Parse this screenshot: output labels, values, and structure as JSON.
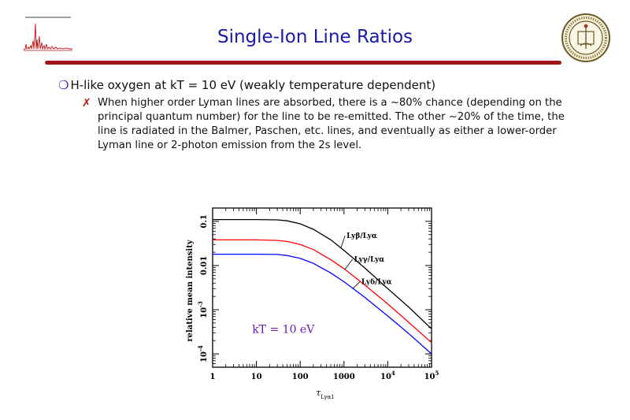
{
  "slide": {
    "title": "Single-Ion Line Ratios",
    "bullet1": {
      "marker": "❍",
      "text": "H-like oxygen at kT = 10 eV (weakly temperature dependent)"
    },
    "bullet2": {
      "marker": "✗",
      "text": "When higher order Lyman lines are absorbed, there is a ~80% chance (depending on the principal quantum number) for the line to be re-emitted.  The other ~20% of the time, the line is radiated in the Balmer, Paschen, etc. lines, and eventually as either a lower-order Lyman line or 2-photon emission from the 2s level."
    }
  },
  "colors": {
    "title": "#1a1aa8",
    "rule": "#a01717",
    "annotation": "#6a1bb5",
    "series": [
      "#000000",
      "#ff0000",
      "#0000ff"
    ]
  },
  "chart_data": {
    "type": "line",
    "xlabel": "τLyα1",
    "ylabel": "relative mean intensity",
    "x_scale": "log",
    "y_scale": "log",
    "xlim": [
      1,
      100000
    ],
    "ylim": [
      5e-05,
      0.2
    ],
    "x_ticks": [
      {
        "v": 1,
        "base": "1",
        "sup": ""
      },
      {
        "v": 10,
        "base": "10",
        "sup": ""
      },
      {
        "v": 100,
        "base": "100",
        "sup": ""
      },
      {
        "v": 1000,
        "base": "1000",
        "sup": ""
      },
      {
        "v": 10000,
        "base": "10",
        "sup": "4"
      },
      {
        "v": 100000,
        "base": "10",
        "sup": "5"
      }
    ],
    "y_ticks": [
      {
        "v": 0.1,
        "base": "0.1",
        "sup": ""
      },
      {
        "v": 0.01,
        "base": "0.01",
        "sup": ""
      },
      {
        "v": 0.001,
        "base": "10",
        "sup": "-3"
      },
      {
        "v": 0.0001,
        "base": "10",
        "sup": "-4"
      }
    ],
    "annotation": "kT = 10 eV",
    "series": [
      {
        "name": "Lyβ/Lyα",
        "color": "#000000",
        "x": [
          1,
          10,
          30,
          50,
          100,
          200,
          500,
          1000,
          3000,
          10000,
          30000,
          100000
        ],
        "y": [
          0.11,
          0.11,
          0.108,
          0.103,
          0.088,
          0.066,
          0.038,
          0.022,
          0.0088,
          0.003,
          0.00115,
          0.00037
        ]
      },
      {
        "name": "Lyγ/Lyα",
        "color": "#ff0000",
        "x": [
          1,
          10,
          30,
          50,
          100,
          200,
          500,
          1000,
          3000,
          10000,
          30000,
          100000
        ],
        "y": [
          0.038,
          0.038,
          0.037,
          0.035,
          0.03,
          0.023,
          0.0135,
          0.0085,
          0.0036,
          0.00135,
          0.00052,
          0.00018
        ]
      },
      {
        "name": "Lyδ/Lyα",
        "color": "#0000ff",
        "x": [
          1,
          10,
          30,
          50,
          100,
          200,
          500,
          1000,
          3000,
          10000,
          30000,
          100000
        ],
        "y": [
          0.018,
          0.018,
          0.0178,
          0.0168,
          0.0145,
          0.0112,
          0.0068,
          0.0043,
          0.0019,
          0.00072,
          0.00029,
          0.0001
        ]
      }
    ]
  }
}
